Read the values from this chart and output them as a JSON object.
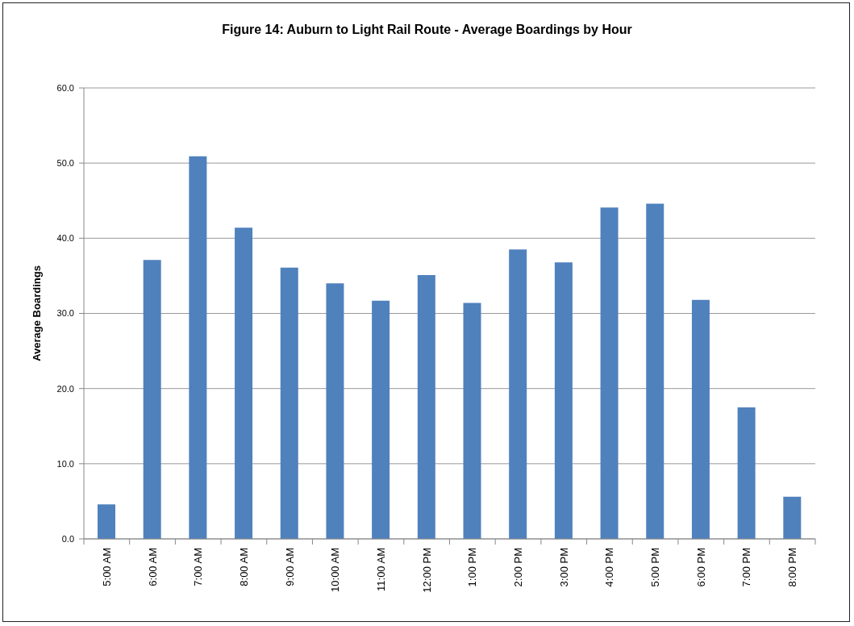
{
  "chart_data": {
    "type": "bar",
    "title": "Figure 14: Auburn to Light Rail Route - Average Boardings by Hour",
    "ylabel": "Average Boardings",
    "categories": [
      "5:00 AM",
      "6:00 AM",
      "7:00 AM",
      "8:00 AM",
      "9:00 AM",
      "10:00 AM",
      "11:00 AM",
      "12:00 PM",
      "1:00 PM",
      "2:00 PM",
      "3:00 PM",
      "4:00 PM",
      "5:00 PM",
      "6:00 PM",
      "7:00 PM",
      "8:00 PM"
    ],
    "values": [
      4.6,
      37.1,
      50.9,
      41.4,
      36.1,
      34.0,
      31.7,
      35.1,
      31.4,
      38.5,
      36.8,
      44.1,
      44.6,
      31.8,
      17.5,
      5.6
    ],
    "color": "#4f81bd",
    "ylim": [
      0,
      60
    ],
    "yticks": [
      {
        "value": 0,
        "label": "0.0"
      },
      {
        "value": 10,
        "label": "10.0"
      },
      {
        "value": 20,
        "label": "20.0"
      },
      {
        "value": 30,
        "label": "30.0"
      },
      {
        "value": 40,
        "label": "40.0"
      },
      {
        "value": 50,
        "label": "50.0"
      },
      {
        "value": 60,
        "label": "60.0"
      }
    ],
    "grid": "y"
  }
}
